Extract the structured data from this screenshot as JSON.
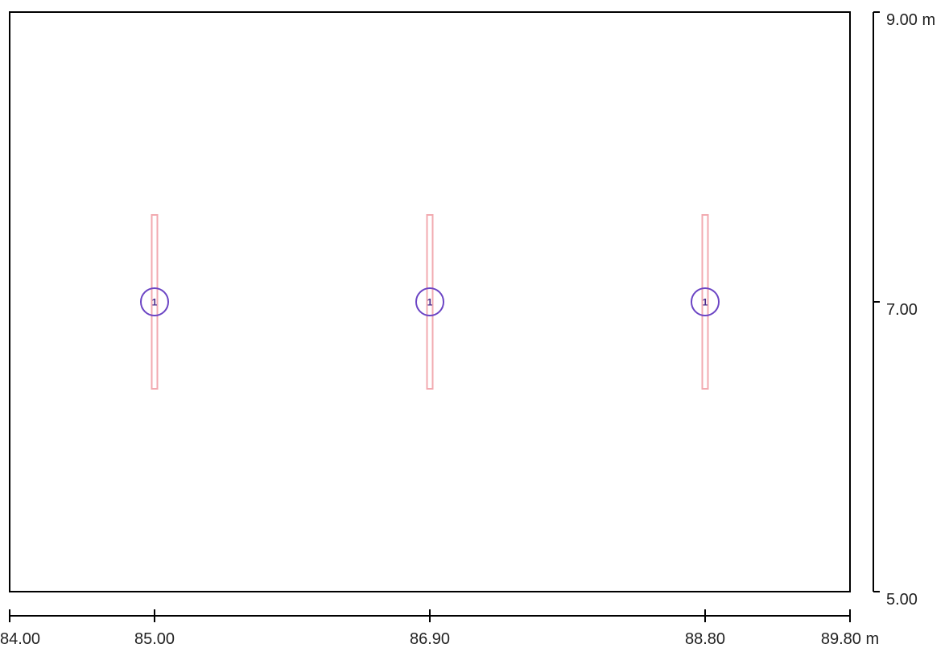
{
  "colors": {
    "room_outline": "#000000",
    "luminaire_outline": "#f2aab0",
    "marker_circle": "#6b44c4",
    "marker_text": "#4a2a8a",
    "text": "#222222"
  },
  "plan": {
    "x_range": [
      84.0,
      89.8
    ],
    "y_range": [
      5.0,
      9.0
    ],
    "unit": "m"
  },
  "x_axis": {
    "ticks": [
      {
        "value": 84.0,
        "label": "84.00"
      },
      {
        "value": 85.0,
        "label": "85.00"
      },
      {
        "value": 86.9,
        "label": "86.90"
      },
      {
        "value": 88.8,
        "label": "88.80"
      },
      {
        "value": 89.8,
        "label": "89.80 m"
      }
    ]
  },
  "y_axis": {
    "ticks": [
      {
        "value": 9.0,
        "label": "9.00 m"
      },
      {
        "value": 7.0,
        "label": "7.00"
      },
      {
        "value": 5.0,
        "label": "5.00"
      }
    ]
  },
  "luminaires": [
    {
      "x": 85.0,
      "y": 7.0,
      "y_from": 6.4,
      "y_to": 7.6,
      "number": "1"
    },
    {
      "x": 86.9,
      "y": 7.0,
      "y_from": 6.4,
      "y_to": 7.6,
      "number": "1"
    },
    {
      "x": 88.8,
      "y": 7.0,
      "y_from": 6.4,
      "y_to": 7.6,
      "number": "1"
    }
  ]
}
